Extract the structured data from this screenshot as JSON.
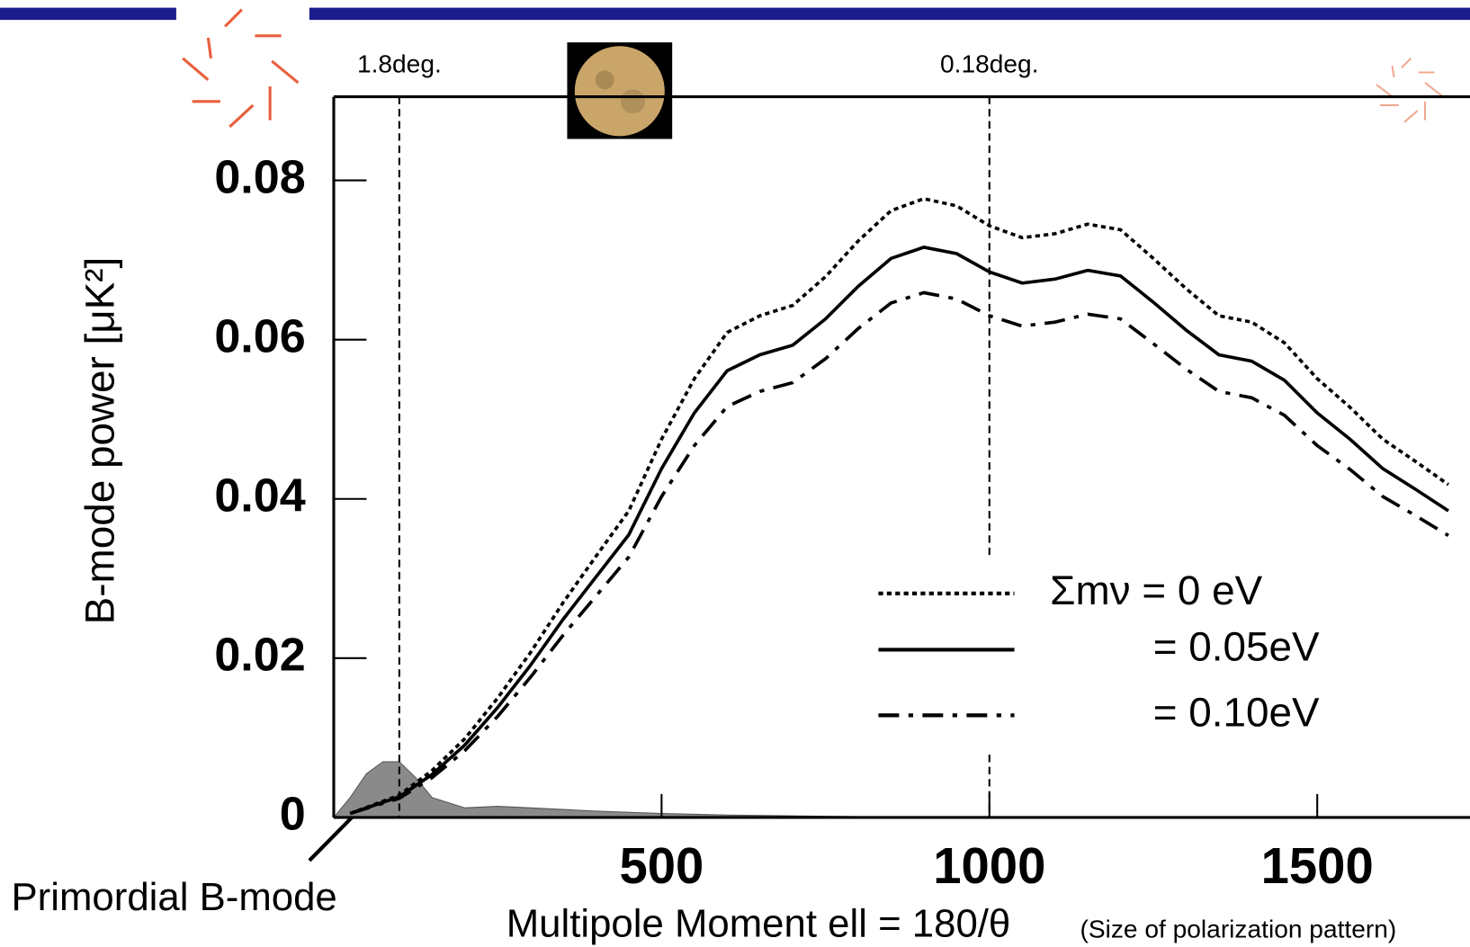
{
  "chart_data": {
    "type": "line",
    "x_label": "Multipole Moment ell = 180/θ",
    "x_sublabel": "(Size of polarization pattern)",
    "y_label": "B-mode power [μK²]",
    "x": [
      25,
      100,
      150,
      200,
      250,
      300,
      350,
      400,
      450,
      500,
      550,
      600,
      650,
      700,
      750,
      800,
      850,
      900,
      950,
      1000,
      1050,
      1100,
      1150,
      1200,
      1250,
      1300,
      1350,
      1400,
      1450,
      1500,
      1550,
      1600,
      1650,
      1700
    ],
    "series": [
      {
        "name": "Σmν = 0 eV",
        "color": "#000000",
        "style": "dotted",
        "values": [
          0.0005,
          0.0028,
          0.0059,
          0.0099,
          0.015,
          0.0207,
          0.027,
          0.0328,
          0.0385,
          0.0475,
          0.0551,
          0.0609,
          0.063,
          0.0643,
          0.0679,
          0.0724,
          0.0762,
          0.0777,
          0.0768,
          0.0743,
          0.0728,
          0.0733,
          0.0745,
          0.0738,
          0.0702,
          0.0664,
          0.063,
          0.0622,
          0.0596,
          0.0551,
          0.0515,
          0.0475,
          0.0447,
          0.0418
        ]
      },
      {
        "name": "= 0.05eV",
        "color": "#000000",
        "style": "solid",
        "values": [
          0.0005,
          0.0026,
          0.0054,
          0.0091,
          0.0138,
          0.0191,
          0.0249,
          0.0302,
          0.0355,
          0.0438,
          0.0508,
          0.0561,
          0.0581,
          0.0593,
          0.0626,
          0.0667,
          0.0702,
          0.0716,
          0.0708,
          0.0685,
          0.0671,
          0.0676,
          0.0687,
          0.068,
          0.0647,
          0.0612,
          0.0581,
          0.0573,
          0.0549,
          0.0508,
          0.0475,
          0.0438,
          0.0412,
          0.0385
        ]
      },
      {
        "name": "= 0.10eV",
        "color": "#000000",
        "style": "dashdot",
        "values": [
          0.0005,
          0.0024,
          0.005,
          0.0084,
          0.0127,
          0.0176,
          0.0229,
          0.0278,
          0.0327,
          0.0403,
          0.0467,
          0.0516,
          0.0535,
          0.0546,
          0.0576,
          0.0614,
          0.0646,
          0.0659,
          0.0651,
          0.063,
          0.0617,
          0.0622,
          0.0632,
          0.0626,
          0.0595,
          0.0563,
          0.0535,
          0.0527,
          0.0505,
          0.0467,
          0.0437,
          0.0403,
          0.0379,
          0.0354
        ]
      }
    ],
    "shaded": {
      "name": "Primordial B-mode",
      "color": "#8a8a8a",
      "x": [
        0,
        25,
        50,
        75,
        100,
        125,
        150,
        200,
        250,
        300,
        400,
        500,
        600,
        700,
        800
      ],
      "values": [
        0,
        0.0025,
        0.0055,
        0.007,
        0.007,
        0.005,
        0.0025,
        0.0012,
        0.0014,
        0.0012,
        0.0008,
        0.0005,
        0.0003,
        0.0002,
        0.0001
      ]
    },
    "markers": [
      {
        "text": "1.8deg.",
        "x": 100
      },
      {
        "text": "0.18deg.",
        "x": 1000
      }
    ],
    "xlim": [
      0,
      1733
    ],
    "ylim": [
      0,
      0.0905
    ],
    "xticks": [
      500,
      1000,
      1500
    ],
    "yticks": [
      0,
      0.02,
      0.04,
      0.06,
      0.08
    ]
  }
}
